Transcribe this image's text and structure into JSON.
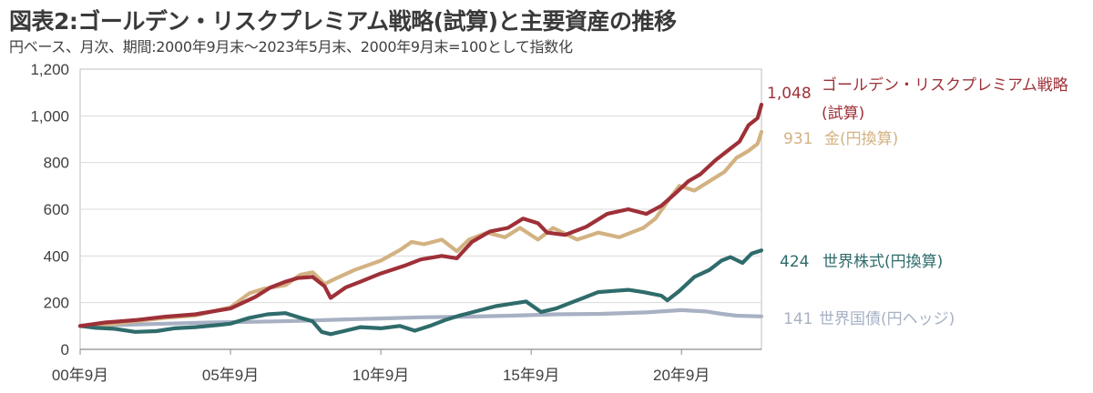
{
  "chart_data": {
    "type": "line",
    "title": "図表2:ゴールデン・リスクプレミアム戦略(試算)と主要資産の推移",
    "subtitle": "円ベース、月次、期間:2000年9月末〜2023年5月末、2000年9月末=100として指数化",
    "ylim": [
      0,
      1200
    ],
    "yticks": [
      "0",
      "200",
      "400",
      "600",
      "800",
      "1,000",
      "1,200"
    ],
    "ytick_values": [
      0,
      200,
      400,
      600,
      800,
      1000,
      1200
    ],
    "xlim": [
      2000.67,
      2023.33
    ],
    "xticks": [
      "00年9月",
      "05年9月",
      "10年9月",
      "15年9月",
      "20年9月"
    ],
    "xtick_values": [
      2000.67,
      2005.67,
      2010.67,
      2015.67,
      2020.67
    ],
    "grid": true,
    "series": [
      {
        "name": "ゴールデン・リスクプレミアム戦略(試算)",
        "end_label": "1,048",
        "color": "#9e3038",
        "x": [
          2000.67,
          2001.5,
          2002.5,
          2003.5,
          2004.5,
          2005.67,
          2006.5,
          2007.0,
          2007.5,
          2007.9,
          2008.4,
          2008.8,
          2009.0,
          2009.5,
          2010.0,
          2010.67,
          2011.5,
          2012.0,
          2012.7,
          2013.2,
          2013.7,
          2014.3,
          2014.9,
          2015.4,
          2015.9,
          2016.2,
          2016.8,
          2017.5,
          2018.2,
          2018.9,
          2019.5,
          2020.0,
          2020.4,
          2020.9,
          2021.3,
          2021.8,
          2022.2,
          2022.6,
          2022.9,
          2023.2,
          2023.33
        ],
        "values": [
          100,
          115,
          125,
          140,
          150,
          175,
          225,
          265,
          290,
          305,
          310,
          270,
          220,
          265,
          290,
          325,
          360,
          385,
          400,
          390,
          460,
          505,
          520,
          560,
          540,
          500,
          490,
          525,
          580,
          600,
          580,
          615,
          660,
          720,
          750,
          810,
          850,
          890,
          960,
          990,
          1048
        ]
      },
      {
        "name": "金(円換算)",
        "end_label": "931",
        "color": "#d3b282",
        "x": [
          2000.67,
          2001.5,
          2002.5,
          2003.5,
          2004.5,
          2005.67,
          2006.3,
          2006.8,
          2007.5,
          2008.0,
          2008.4,
          2008.8,
          2009.2,
          2009.8,
          2010.67,
          2011.3,
          2011.7,
          2012.1,
          2012.7,
          2013.2,
          2013.6,
          2014.2,
          2014.8,
          2015.3,
          2015.9,
          2016.4,
          2017.2,
          2017.9,
          2018.6,
          2019.4,
          2019.8,
          2020.3,
          2020.6,
          2021.1,
          2021.6,
          2022.1,
          2022.5,
          2022.9,
          2023.2,
          2023.33
        ],
        "values": [
          100,
          105,
          120,
          135,
          145,
          180,
          240,
          260,
          275,
          320,
          330,
          280,
          305,
          340,
          380,
          425,
          460,
          450,
          470,
          420,
          470,
          500,
          480,
          520,
          470,
          520,
          470,
          500,
          480,
          520,
          560,
          650,
          700,
          680,
          720,
          760,
          820,
          850,
          880,
          931
        ]
      },
      {
        "name": "世界株式(円換算)",
        "end_label": "424",
        "color": "#2f6b6b",
        "x": [
          2000.67,
          2001.2,
          2001.8,
          2002.5,
          2003.2,
          2003.8,
          2004.5,
          2005.3,
          2005.67,
          2006.3,
          2006.9,
          2007.5,
          2008.0,
          2008.4,
          2008.7,
          2009.0,
          2009.5,
          2010.0,
          2010.67,
          2011.3,
          2011.8,
          2012.3,
          2012.8,
          2013.3,
          2013.9,
          2014.5,
          2015.0,
          2015.5,
          2016.0,
          2016.5,
          2017.2,
          2017.9,
          2018.4,
          2018.9,
          2019.4,
          2020.0,
          2020.2,
          2020.6,
          2021.1,
          2021.6,
          2022.0,
          2022.3,
          2022.7,
          2023.0,
          2023.33
        ],
        "values": [
          100,
          92,
          88,
          75,
          78,
          90,
          95,
          105,
          110,
          135,
          150,
          155,
          135,
          120,
          75,
          65,
          80,
          95,
          90,
          100,
          80,
          100,
          125,
          145,
          165,
          185,
          195,
          205,
          160,
          175,
          210,
          245,
          250,
          255,
          245,
          230,
          210,
          250,
          310,
          340,
          380,
          395,
          370,
          410,
          424
        ]
      },
      {
        "name": "世界国債(円ヘッジ)",
        "end_label": "141",
        "color": "#a7b1c3",
        "x": [
          2000.67,
          2002.0,
          2003.5,
          2005.0,
          2006.5,
          2008.0,
          2009.5,
          2010.67,
          2012.0,
          2013.5,
          2015.0,
          2016.5,
          2018.0,
          2019.5,
          2020.67,
          2021.5,
          2022.0,
          2022.5,
          2023.33
        ],
        "values": [
          100,
          105,
          110,
          115,
          118,
          122,
          128,
          132,
          137,
          140,
          144,
          150,
          152,
          158,
          168,
          162,
          152,
          144,
          141
        ]
      }
    ],
    "legend_labels": [
      {
        "value": "1,048",
        "text": [
          "ゴールデン・リスクプレミアム戦略",
          "(試算)"
        ],
        "color": "#9e3038"
      },
      {
        "value": "931",
        "text": [
          "金(円換算)"
        ],
        "color": "#d3b282"
      },
      {
        "value": "424",
        "text": [
          "世界株式(円換算)"
        ],
        "color": "#2f6b6b"
      },
      {
        "value": "141",
        "text": [
          "世界国債(円ヘッジ)"
        ],
        "color": "#a7b1c3"
      }
    ]
  }
}
